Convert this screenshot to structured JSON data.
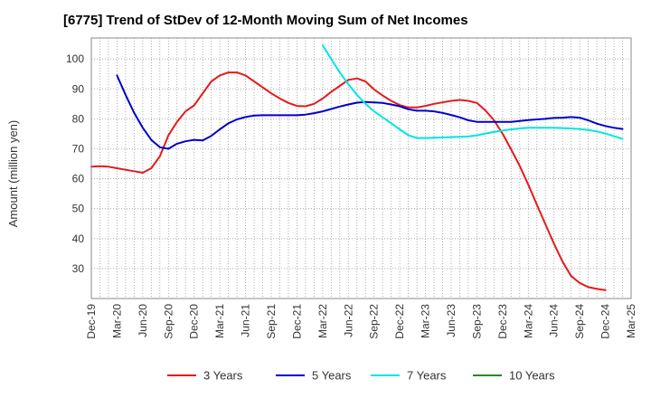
{
  "chart_data": {
    "type": "line",
    "title": "[6775]  Trend of StDev of 12-Month Moving Sum of Net Incomes",
    "ylabel": "Amount (million yen)",
    "xlabel": "",
    "ylim": [
      20,
      107
    ],
    "yticks": [
      30,
      40,
      50,
      60,
      70,
      80,
      90,
      100
    ],
    "x_ticks": [
      "Dec-19",
      "Mar-20",
      "Jun-20",
      "Sep-20",
      "Dec-20",
      "Mar-21",
      "Jun-21",
      "Sep-21",
      "Dec-21",
      "Mar-22",
      "Jun-22",
      "Sep-22",
      "Dec-22",
      "Mar-23",
      "Jun-23",
      "Sep-23",
      "Dec-23",
      "Mar-24",
      "Jun-24",
      "Sep-24",
      "Dec-24",
      "Mar-25"
    ],
    "grid": true,
    "legend_position": "bottom",
    "series": [
      {
        "name": "3 Years",
        "color": "#e41a1c",
        "start": 0,
        "values": [
          64,
          64.2,
          64,
          63.5,
          63,
          62.5,
          62,
          63.5,
          67.5,
          74.5,
          79,
          82.5,
          84.5,
          88.5,
          92.5,
          94.5,
          95.5,
          95.5,
          94.5,
          92.5,
          90.5,
          88.5,
          86.8,
          85.3,
          84.3,
          84.2,
          85,
          86.8,
          89,
          91,
          93,
          93.5,
          92.5,
          89.8,
          87.8,
          86,
          84.6,
          83.8,
          83.8,
          84.3,
          85,
          85.5,
          86,
          86.3,
          86,
          85.3,
          82.8,
          79.5,
          75,
          69.8,
          64.3,
          58,
          51.3,
          44.8,
          38.3,
          32.3,
          27.5,
          25.2,
          23.8,
          23.2,
          22.8
        ]
      },
      {
        "name": "5 Years",
        "color": "#0000cc",
        "start": 3,
        "values": [
          94.5,
          88,
          82,
          77,
          73,
          70.5,
          70,
          71.7,
          72.5,
          73,
          72.8,
          74.3,
          76.5,
          78.5,
          79.8,
          80.6,
          81.1,
          81.2,
          81.2,
          81.2,
          81.2,
          81.2,
          81.4,
          81.9,
          82.5,
          83.3,
          84.1,
          84.8,
          85.4,
          85.6,
          85.5,
          85.3,
          84.8,
          84.2,
          83.2,
          82.7,
          82.7,
          82.5,
          82,
          81.3,
          80.5,
          79.5,
          79,
          79,
          79,
          79,
          79,
          79.3,
          79.6,
          79.8,
          80,
          80.3,
          80.4,
          80.6,
          80.4,
          79.5,
          78.4,
          77.6,
          77,
          76.6
        ]
      },
      {
        "name": "7 Years",
        "color": "#00e5e5",
        "start": 27,
        "values": [
          104.5,
          100,
          95.5,
          91.5,
          88,
          85,
          82.5,
          80.5,
          78.5,
          76.5,
          74.5,
          73.6,
          73.6,
          73.7,
          73.8,
          73.9,
          74,
          74.1,
          74.5,
          75.1,
          75.6,
          76.1,
          76.5,
          76.8,
          77,
          77,
          77,
          77,
          76.9,
          76.8,
          76.6,
          76.3,
          75.8,
          75.1,
          74.2,
          73.3
        ]
      },
      {
        "name": "10 Years",
        "color": "#228b22",
        "start": 0,
        "values": []
      }
    ]
  }
}
